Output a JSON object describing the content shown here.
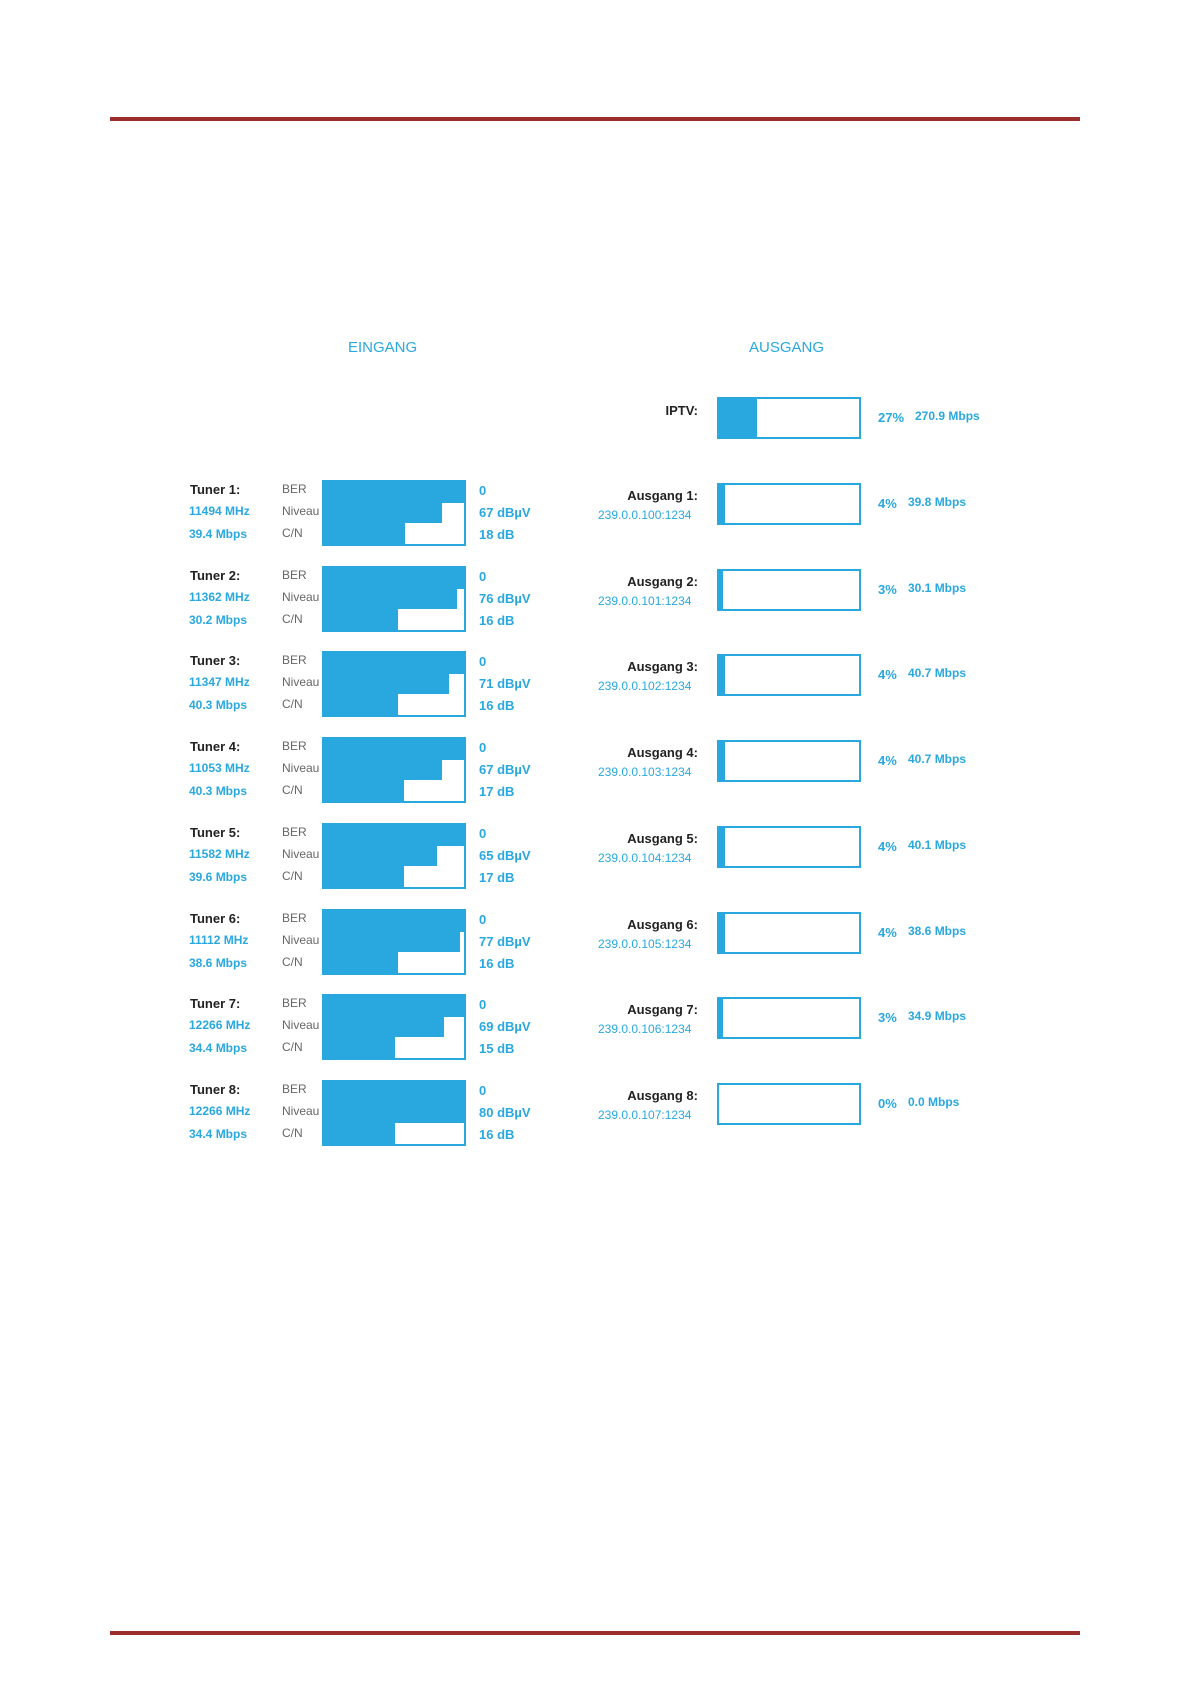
{
  "headings": {
    "input": "EINGANG",
    "output": "AUSGANG"
  },
  "colors": {
    "accent": "#29a8e0",
    "rule": "#9b2d2d"
  },
  "meter_labels": {
    "ber": "BER",
    "level": "Niveau",
    "cn": "C/N"
  },
  "iptv": {
    "label": "IPTV:",
    "percent": "27%",
    "rate": "270.9 Mbps",
    "fill": 0.27
  },
  "tuners": [
    {
      "name": "Tuner 1:",
      "freq": "11494 MHz",
      "rate": "39.4 Mbps",
      "ber": "0",
      "level": "67 dBµV",
      "cn": "18 dB",
      "ber_fill": 1.0,
      "level_fill": 0.84,
      "cn_fill": 0.58
    },
    {
      "name": "Tuner 2:",
      "freq": "11362 MHz",
      "rate": "30.2 Mbps",
      "ber": "0",
      "level": "76 dBµV",
      "cn": "16 dB",
      "ber_fill": 1.0,
      "level_fill": 0.95,
      "cn_fill": 0.53
    },
    {
      "name": "Tuner 3:",
      "freq": "11347 MHz",
      "rate": "40.3 Mbps",
      "ber": "0",
      "level": "71 dBµV",
      "cn": "16 dB",
      "ber_fill": 1.0,
      "level_fill": 0.89,
      "cn_fill": 0.53
    },
    {
      "name": "Tuner 4:",
      "freq": "11053 MHz",
      "rate": "40.3 Mbps",
      "ber": "0",
      "level": "67 dBµV",
      "cn": "17 dB",
      "ber_fill": 1.0,
      "level_fill": 0.84,
      "cn_fill": 0.57
    },
    {
      "name": "Tuner 5:",
      "freq": "11582 MHz",
      "rate": "39.6 Mbps",
      "ber": "0",
      "level": "65 dBµV",
      "cn": "17 dB",
      "ber_fill": 1.0,
      "level_fill": 0.81,
      "cn_fill": 0.57
    },
    {
      "name": "Tuner 6:",
      "freq": "11112 MHz",
      "rate": "38.6 Mbps",
      "ber": "0",
      "level": "77 dBµV",
      "cn": "16 dB",
      "ber_fill": 1.0,
      "level_fill": 0.97,
      "cn_fill": 0.53
    },
    {
      "name": "Tuner 7:",
      "freq": "12266 MHz",
      "rate": "34.4 Mbps",
      "ber": "0",
      "level": "69 dBµV",
      "cn": "15 dB",
      "ber_fill": 1.0,
      "level_fill": 0.86,
      "cn_fill": 0.51
    },
    {
      "name": "Tuner 8:",
      "freq": "12266 MHz",
      "rate": "34.4 Mbps",
      "ber": "0",
      "level": "80 dBµV",
      "cn": "16 dB",
      "ber_fill": 1.0,
      "level_fill": 1.0,
      "cn_fill": 0.51
    }
  ],
  "outputs": [
    {
      "name": "Ausgang 1:",
      "address": "239.0.0.100:1234",
      "percent": "4%",
      "rate": "39.8 Mbps",
      "fill": 0.04
    },
    {
      "name": "Ausgang 2:",
      "address": "239.0.0.101:1234",
      "percent": "3%",
      "rate": "30.1 Mbps",
      "fill": 0.03
    },
    {
      "name": "Ausgang 3:",
      "address": "239.0.0.102:1234",
      "percent": "4%",
      "rate": "40.7 Mbps",
      "fill": 0.04
    },
    {
      "name": "Ausgang 4:",
      "address": "239.0.0.103:1234",
      "percent": "4%",
      "rate": "40.7 Mbps",
      "fill": 0.04
    },
    {
      "name": "Ausgang 5:",
      "address": "239.0.0.104:1234",
      "percent": "4%",
      "rate": "40.1 Mbps",
      "fill": 0.04
    },
    {
      "name": "Ausgang 6:",
      "address": "239.0.0.105:1234",
      "percent": "4%",
      "rate": "38.6 Mbps",
      "fill": 0.04
    },
    {
      "name": "Ausgang 7:",
      "address": "239.0.0.106:1234",
      "percent": "3%",
      "rate": "34.9 Mbps",
      "fill": 0.03
    },
    {
      "name": "Ausgang 8:",
      "address": "239.0.0.107:1234",
      "percent": "0%",
      "rate": "0.0 Mbps",
      "fill": 0.0
    }
  ]
}
